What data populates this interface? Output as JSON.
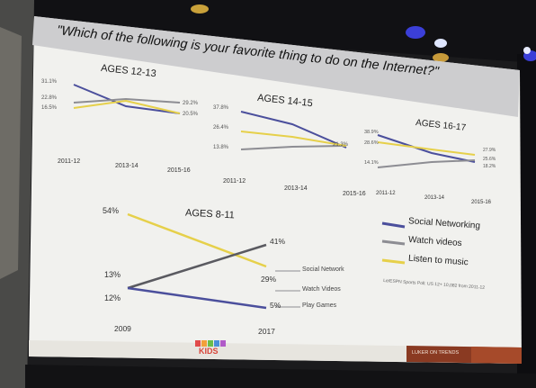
{
  "slide": {
    "question": "\"Which of the following is your favorite thing to do on the Internet?\"",
    "source": "Le/ESPN Sports Poll: US 12+ 10,082 from 2011-12",
    "footer_logo": "KIDS",
    "footer_badge": "LUKER ON TRENDS"
  },
  "colors": {
    "social": "#4b4f9c",
    "video": "#8d8d93",
    "music": "#e6d04a",
    "header_bg": "#cfcfd0",
    "slide_bg": "#f4f4f2",
    "footer_stripe": "#7a2e1c"
  },
  "legend": [
    {
      "label": "Social Networking",
      "color": "#4b4f9c"
    },
    {
      "label": "Watch videos",
      "color": "#8d8d93"
    },
    {
      "label": "Listen to music",
      "color": "#e6d04a"
    }
  ],
  "charts": {
    "a1213": {
      "title": "AGES 12-13",
      "years": [
        "2011-12",
        "2013-14",
        "2015-16"
      ],
      "start_labels": [
        "31.1%",
        "22.8%",
        "16.5%"
      ],
      "end_labels": [
        "29.2%",
        "20.5%"
      ]
    },
    "a1415": {
      "title": "AGES 14-15",
      "years": [
        "2011-12",
        "2013-14",
        "2015-16"
      ],
      "start_labels": [
        "37.8%",
        "26.4%",
        "13.8%"
      ],
      "end_labels": [
        "21.3%"
      ]
    },
    "a1617": {
      "title": "AGES 16-17",
      "years": [
        "2011-12",
        "2013-14",
        "2015-16"
      ],
      "start_labels": [
        "38.9%",
        "28.6%",
        "14.1%"
      ],
      "end_labels": [
        "27.9%",
        "25.6%",
        "18.2%"
      ]
    },
    "a811": {
      "title": "AGES 8-11",
      "years": [
        "2009",
        "2017"
      ],
      "start_labels": [
        "54%",
        "13%",
        "12%"
      ],
      "end_labels": [
        "41%",
        "29%",
        "5%"
      ],
      "series_labels": [
        "Social Network",
        "Watch Videos",
        "Play Games"
      ]
    }
  }
}
